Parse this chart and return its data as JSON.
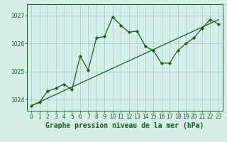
{
  "title": "Graphe pression niveau de la mer (hPa)",
  "background_color": "#d4eee8",
  "grid_color": "#b0cdd4",
  "line_color": "#1a5c1a",
  "marker_color": "#1a5c1a",
  "ylim": [
    1023.6,
    1027.4
  ],
  "xlim": [
    -0.5,
    23.5
  ],
  "yticks": [
    1024,
    1025,
    1026,
    1027
  ],
  "xticks": [
    0,
    1,
    2,
    3,
    4,
    5,
    6,
    7,
    8,
    9,
    10,
    11,
    12,
    13,
    14,
    15,
    16,
    17,
    18,
    19,
    20,
    21,
    22,
    23
  ],
  "trend_x": [
    0,
    23
  ],
  "trend_y": [
    1023.78,
    1026.85
  ],
  "line_x": [
    0,
    1,
    2,
    3,
    4,
    5,
    6,
    7,
    8,
    9,
    10,
    11,
    12,
    13,
    14,
    15,
    16,
    17,
    18,
    19,
    20,
    21,
    22,
    23
  ],
  "line_y": [
    1023.78,
    1023.9,
    1024.3,
    1024.4,
    1024.55,
    1024.35,
    1025.55,
    1025.05,
    1026.2,
    1026.25,
    1026.95,
    1026.65,
    1026.4,
    1026.45,
    1025.9,
    1025.75,
    1025.3,
    1025.3,
    1025.75,
    1026.0,
    1026.2,
    1026.55,
    1026.85,
    1026.7
  ],
  "xlabel_fontsize": 7,
  "tick_fontsize": 5.5
}
